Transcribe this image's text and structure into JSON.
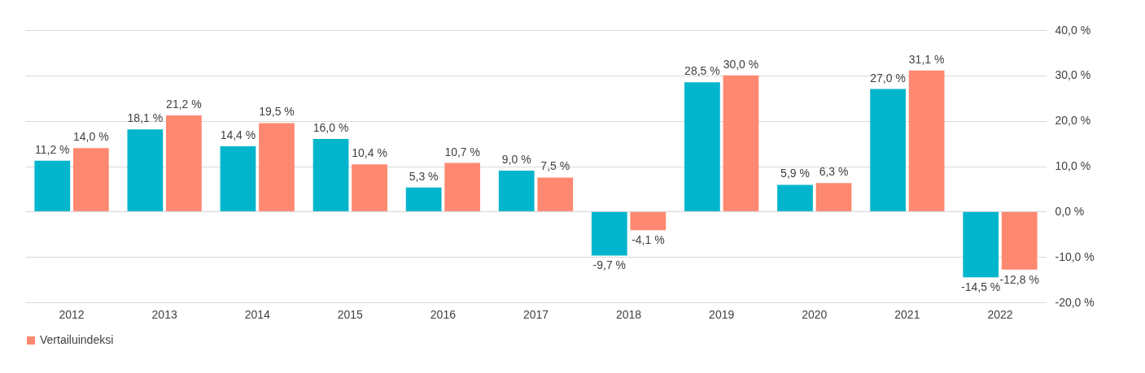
{
  "chart_data": {
    "type": "bar",
    "categories": [
      "2012",
      "2013",
      "2014",
      "2015",
      "2016",
      "2017",
      "2018",
      "2019",
      "2020",
      "2021",
      "2022"
    ],
    "series": [
      {
        "color": "#00b5cc",
        "values": [
          11.2,
          18.1,
          14.4,
          16.0,
          5.3,
          9.0,
          -9.7,
          28.5,
          5.9,
          27.0,
          -14.5
        ],
        "value_labels": [
          "11,2 %",
          "18,1 %",
          "14,4 %",
          "16,0 %",
          "5,3 %",
          "9,0 %",
          "-9,7 %",
          "28,5 %",
          "5,9 %",
          "27,0 %",
          "-14,5 %"
        ]
      },
      {
        "name": "Vertailuindeksi",
        "color": "#ff8870",
        "values": [
          14.0,
          21.2,
          19.5,
          10.4,
          10.7,
          7.5,
          -4.1,
          30.0,
          6.3,
          31.1,
          -12.8
        ],
        "value_labels": [
          "14,0 %",
          "21,2 %",
          "19,5 %",
          "10,4 %",
          "10,7 %",
          "7,5 %",
          "-4,1 %",
          "30,0 %",
          "6,3 %",
          "31,1 %",
          "-12,8 %"
        ]
      }
    ],
    "ylim": [
      -20,
      40
    ],
    "yticks": [
      {
        "value": -20,
        "label": "-20,0 %"
      },
      {
        "value": -10,
        "label": "-10,0 %"
      },
      {
        "value": 0,
        "label": "0,0 %"
      },
      {
        "value": 10,
        "label": "10,0 %"
      },
      {
        "value": 20,
        "label": "20,0 %"
      },
      {
        "value": 30,
        "label": "30,0 %"
      },
      {
        "value": 40,
        "label": "40,0 %"
      }
    ],
    "grid": "y",
    "legend": "bottom"
  }
}
